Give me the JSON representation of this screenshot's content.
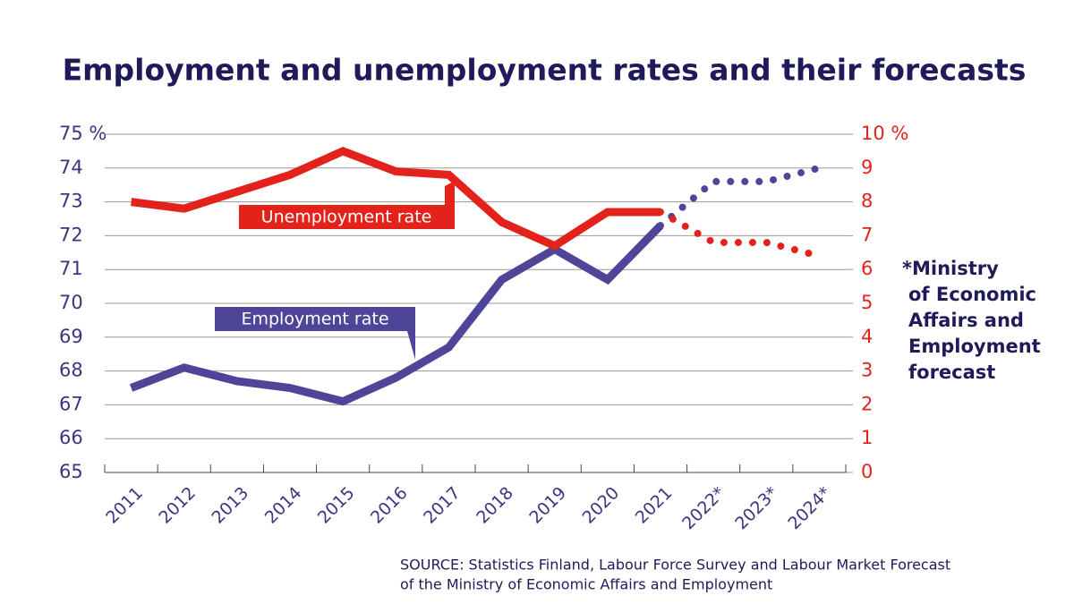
{
  "chart_data": {
    "type": "line",
    "title": "Employment and unemployment rates and their forecasts",
    "categories": [
      "2011",
      "2012",
      "2013",
      "2014",
      "2015",
      "2016",
      "2017",
      "2018",
      "2019",
      "2020",
      "2021",
      "2022*",
      "2023*",
      "2024*"
    ],
    "series": [
      {
        "name": "Employment rate",
        "color": "#4f4598",
        "values": [
          67.5,
          68.1,
          67.7,
          67.5,
          67.1,
          67.8,
          68.7,
          70.7,
          71.6,
          70.7,
          72.3,
          73.6,
          73.6,
          74.0
        ]
      },
      {
        "name": "Unemployment rate",
        "color": "#e3231b",
        "axis": "y2",
        "values": [
          8.0,
          7.8,
          8.3,
          8.8,
          9.5,
          8.9,
          8.8,
          7.4,
          6.7,
          7.7,
          7.7,
          6.8,
          6.8,
          6.4
        ]
      }
    ],
    "ylim": [
      65,
      75
    ],
    "yticks": [
      65,
      66,
      67,
      68,
      69,
      70,
      71,
      72,
      73,
      74,
      {
        "value": 75,
        "label": "75 %"
      }
    ],
    "y2lim": [
      0,
      10
    ],
    "y2ticks": [
      0,
      1,
      2,
      3,
      4,
      5,
      6,
      7,
      8,
      9,
      {
        "value": 10,
        "label": "10 %"
      }
    ],
    "grid": true,
    "note": [
      "*Ministry",
      "of Economic",
      "Affairs and",
      "Employment",
      "forecast"
    ],
    "source": [
      "SOURCE: Statistics Finland, Labour Force Survey and Labour Market Forecast",
      "of the Ministry of Economic Affairs and Employment"
    ]
  }
}
